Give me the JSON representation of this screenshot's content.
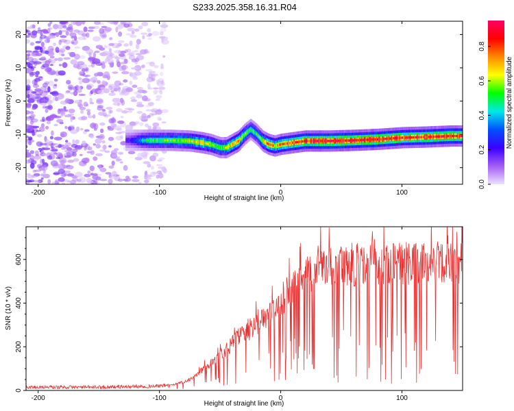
{
  "figure": {
    "title": "S233.2025.358.16.31.R04",
    "colors": {
      "axis": "#000000",
      "snr_line": "#e83030",
      "background": "#ffffff"
    }
  },
  "chart_data": [
    {
      "type": "heatmap",
      "title": "S233.2025.358.16.31.R04",
      "xlabel": "Height of straight line (km)",
      "ylabel": "Frequency (Hz)",
      "xlim": [
        -210,
        150
      ],
      "ylim": [
        -25,
        24
      ],
      "xticks": [
        -200,
        -100,
        0,
        100
      ],
      "xtick_labels": [
        "-200",
        "-100",
        "0",
        "100"
      ],
      "yticks": [
        -20,
        -10,
        0,
        10,
        20
      ],
      "ytick_labels": [
        "-20",
        "-10",
        "0",
        "10",
        "20"
      ],
      "signal_track": {
        "x": [
          -125,
          -110,
          -90,
          -75,
          -65,
          -58,
          -50,
          -45,
          -40,
          -35,
          -30,
          -25,
          -20,
          -15,
          -10,
          -5,
          0,
          10,
          20,
          40,
          60,
          80,
          100,
          120,
          140,
          150
        ],
        "y": [
          -11.8,
          -11.8,
          -11.8,
          -12,
          -12.5,
          -13,
          -14,
          -14,
          -13,
          -12,
          -10,
          -8.5,
          -10,
          -12,
          -13,
          -13.5,
          -13,
          -12.5,
          -12,
          -12,
          -11.8,
          -11.5,
          -11,
          -10.8,
          -10.5,
          -10.5
        ],
        "peak_amplitude": [
          0.2,
          0.5,
          0.55,
          0.6,
          0.7,
          0.6,
          0.55,
          0.6,
          0.7,
          0.75,
          0.55,
          0.5,
          0.5,
          0.6,
          0.75,
          0.7,
          0.75,
          0.8,
          0.85,
          0.9,
          0.9,
          0.88,
          0.85,
          0.85,
          0.85,
          0.8
        ]
      },
      "noise_region_x": [
        -210,
        -95
      ],
      "colorbar": {
        "label": "Normalized spectral amplitude",
        "range": [
          0.0,
          0.95
        ],
        "ticks": [
          0.0,
          0.2,
          0.4,
          0.6,
          0.8
        ],
        "tick_labels": [
          "0.0",
          "0.2",
          "0.4",
          "0.6",
          "0.8"
        ],
        "colormap": [
          "#ece1ff",
          "#a45cf5",
          "#3a00ff",
          "#0050ff",
          "#00e8e8",
          "#00ff00",
          "#ffff00",
          "#ff8800",
          "#ff0000",
          "#ff0066"
        ]
      }
    },
    {
      "type": "line",
      "xlabel": "Height of straight line (km)",
      "ylabel": "SNR (10 * v/v)",
      "xlim": [
        -210,
        150
      ],
      "ylim": [
        0,
        750
      ],
      "xticks": [
        -200,
        -100,
        0,
        100
      ],
      "xtick_labels": [
        "-200",
        "-100",
        "0",
        "100"
      ],
      "yticks": [
        0,
        200,
        400,
        600
      ],
      "ytick_labels": [
        "0",
        "200",
        "400",
        "600"
      ],
      "trend": {
        "x": [
          -210,
          -150,
          -100,
          -85,
          -75,
          -65,
          -55,
          -45,
          -35,
          -25,
          -15,
          -5,
          5,
          15,
          25,
          35,
          50,
          70,
          100,
          130,
          150
        ],
        "y": [
          15,
          15,
          20,
          30,
          50,
          90,
          140,
          190,
          240,
          280,
          320,
          380,
          440,
          500,
          540,
          560,
          575,
          580,
          585,
          585,
          590
        ]
      },
      "series": [
        {
          "name": "SNR",
          "color": "#e83030"
        }
      ]
    }
  ]
}
